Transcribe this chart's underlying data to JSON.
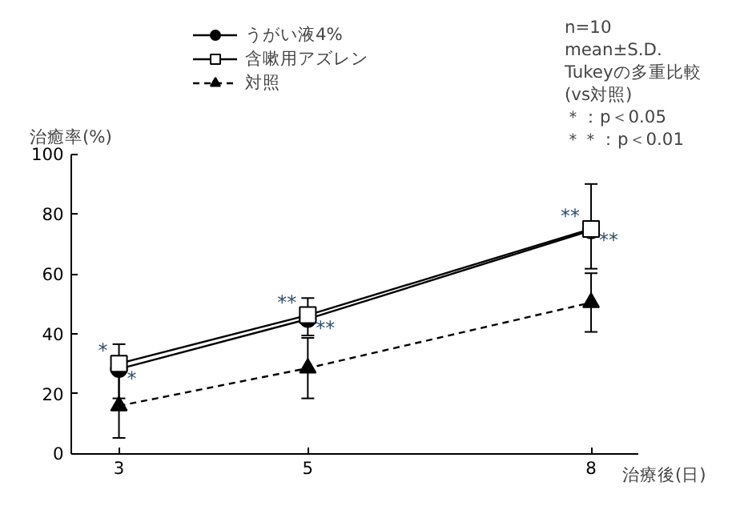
{
  "chart_data": {
    "type": "line",
    "xlabel": "治療後(日)",
    "ylabel": "治癒率(%)",
    "x": [
      3,
      5,
      8
    ],
    "xlim": [
      2.5,
      8.5
    ],
    "xticks": [
      3,
      5,
      8
    ],
    "ylim": [
      0,
      100
    ],
    "yticks": [
      0,
      20,
      40,
      60,
      80,
      100
    ],
    "legend": "top",
    "series": [
      {
        "name": "うがい液4%",
        "color": "#000000",
        "marker": "circle",
        "line_style": "solid",
        "values": [
          28.2,
          44.9,
          74.5
        ],
        "errors": [
          [
            18.4,
            36.5
          ],
          [
            39.4,
            51.9
          ],
          [
            61.7,
            90.0
          ]
        ],
        "value_labels": [
          "*",
          "**",
          "**"
        ]
      },
      {
        "name": "含嗽用アズレン",
        "color": "#000000",
        "marker": "square",
        "line_style": "solid",
        "values": [
          30.0,
          46.2,
          75.0
        ],
        "value_labels": [
          "*",
          "**",
          "**"
        ]
      },
      {
        "name": "対照",
        "color": "#000000",
        "marker": "triangle",
        "line_style": "dashed",
        "values": [
          15.9,
          28.5,
          50.4
        ],
        "errors": [
          [
            5.2,
            26.6
          ],
          [
            18.4,
            38.6
          ],
          [
            40.6,
            60.2
          ]
        ]
      }
    ],
    "annotations": [
      "n=10",
      "mean±S.D.",
      "Tukeyの多重比較",
      "(vs対照)",
      "＊：p＜0.05",
      "＊＊：p＜0.01"
    ]
  }
}
